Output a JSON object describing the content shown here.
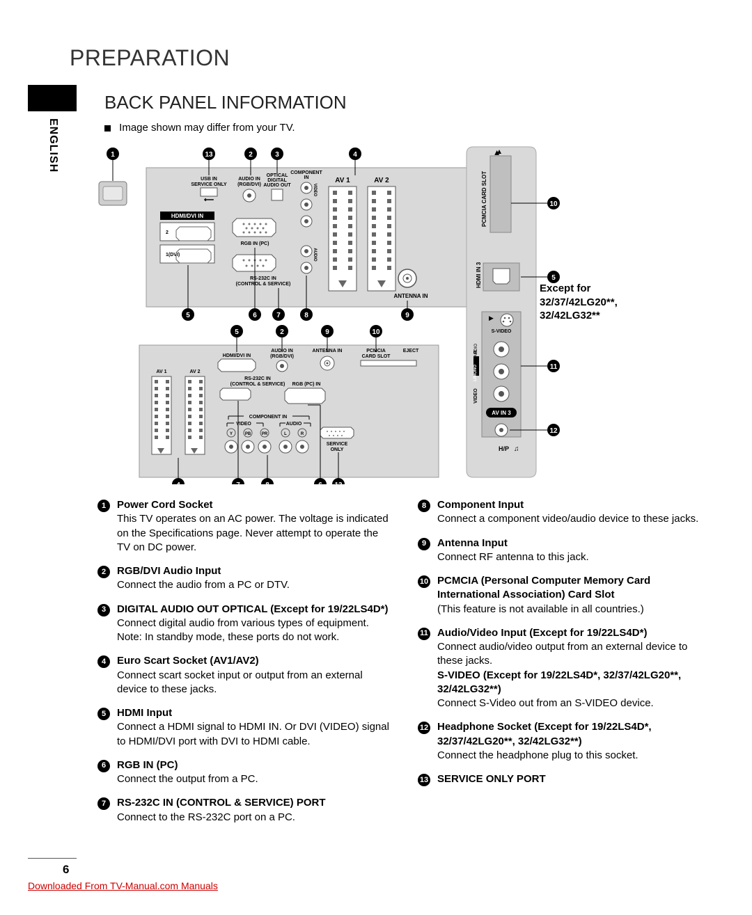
{
  "chapter": "PREPARATION",
  "sideLabel": "ENGLISH",
  "sectionTitle": "BACK PANEL INFORMATION",
  "note": "Image shown may differ from your TV.",
  "exceptNote": "Except for\n32/37/42LG20**,\n32/42LG32**",
  "pageNumber": "6",
  "downloadText": "Downloaded From TV-Manual.com Manuals",
  "diagram": {
    "topCallouts": [
      "1",
      "13",
      "2",
      "3",
      "4"
    ],
    "topLabels": {
      "usb": "USB IN\nSERVICE ONLY",
      "audioIn": "AUDIO IN\n(RGB/DVI)",
      "optical": "OPTICAL\nDIGITAL\nAUDIO OUT",
      "component": "COMPONENT\nIN",
      "av1": "AV 1",
      "av2": "AV 2",
      "hdmiDvi": "HDMI/DVI IN",
      "port2": "2",
      "port1": "1(DVI)",
      "rgbIn": "RGB IN (PC)",
      "rs232": "RS-232C IN\n(CONTROL & SERVICE)",
      "antenna": "ANTENNA IN"
    },
    "topBottomCallouts": [
      "5",
      "6",
      "7",
      "8",
      "9"
    ],
    "midCallouts": [
      "5",
      "2",
      "9",
      "10"
    ],
    "midLabels": {
      "hdmiDvi": "HDMI/DVI IN",
      "audioIn": "AUDIO IN\n(RGB/DVI)",
      "antenna": "ANTENNA IN",
      "pcmcia": "PCMCIA\nCARD SLOT",
      "eject": "EJECT",
      "av1": "AV 1",
      "av2": "AV 2",
      "rs232": "RS-232C IN\n(CONTROL & SERVICE)",
      "rgbPc": "RGB (PC) IN",
      "componentIn": "COMPONENT IN",
      "video": "VIDEO",
      "audio": "AUDIO",
      "y": "Y",
      "pb": "PB",
      "pr": "PR",
      "l": "L",
      "r": "R",
      "service": "SERVICE\nONLY"
    },
    "midBottomCallouts": [
      "4",
      "7",
      "8",
      "6",
      "13"
    ],
    "sidePanel": {
      "pcmcia": "PCMCIA CARD SLOT",
      "hdmi3": "HDMI IN 3",
      "svideo": "S-VIDEO",
      "audioLabel": "AUDIO",
      "lmono": "L/MONO",
      "r": "R",
      "video": "VIDEO",
      "avin3": "AV IN 3",
      "hp": "H/P",
      "callouts": [
        "10",
        "5",
        "11",
        "12"
      ]
    }
  },
  "itemsLeft": [
    {
      "n": "1",
      "title": "Power Cord Socket",
      "body": "This TV operates on an AC power. The voltage is indicated on the Specifications page. Never attempt to operate the TV on DC power."
    },
    {
      "n": "2",
      "title": "RGB/DVI Audio Input",
      "body": "Connect the audio from a PC or DTV."
    },
    {
      "n": "3",
      "title": "DIGITAL AUDIO OUT OPTICAL (Except for 19/22LS4D*)",
      "body": "Connect digital audio from various types of equipment. Note: In standby mode, these ports do not work."
    },
    {
      "n": "4",
      "title": "Euro Scart Socket (AV1/AV2)",
      "body": "Connect scart socket input or output from an external device to these jacks."
    },
    {
      "n": "5",
      "title": "HDMI Input",
      "body": "Connect a HDMI signal to HDMI IN. Or DVI (VIDEO) signal to HDMI/DVI port with DVI to HDMI cable."
    },
    {
      "n": "6",
      "title": "RGB IN (PC)",
      "body": "Connect the output from a PC."
    },
    {
      "n": "7",
      "title": "RS-232C IN (CONTROL & SERVICE) PORT",
      "body": "Connect to the RS-232C port on a PC."
    }
  ],
  "itemsRight": [
    {
      "n": "8",
      "title": "Component Input",
      "body": "Connect a component video/audio device to these jacks."
    },
    {
      "n": "9",
      "title": "Antenna Input",
      "body": "Connect RF antenna to this jack."
    },
    {
      "n": "10",
      "title": "PCMCIA (Personal Computer Memory Card International Association) Card Slot",
      "body": "(This feature is not available in all countries.)"
    },
    {
      "n": "11",
      "title": "Audio/Video Input (Except for 19/22LS4D*)",
      "body": "Connect audio/video output from an external device to these jacks.\nS-VIDEO (Except for 19/22LS4D*, 32/37/42LG20**, 32/42LG32**)\nConnect S-Video out from an S-VIDEO device.",
      "boldExtra": true
    },
    {
      "n": "12",
      "title": "Headphone Socket (Except for 19/22LS4D*, 32/37/42LG20**, 32/42LG32**)",
      "body": "Connect the headphone plug to this socket."
    },
    {
      "n": "13",
      "title": "SERVICE ONLY PORT",
      "body": ""
    }
  ],
  "colors": {
    "panelGrey": "#d9d9d9",
    "panelDark": "#bfbfbf",
    "black": "#000000",
    "red": "#cc0000"
  }
}
